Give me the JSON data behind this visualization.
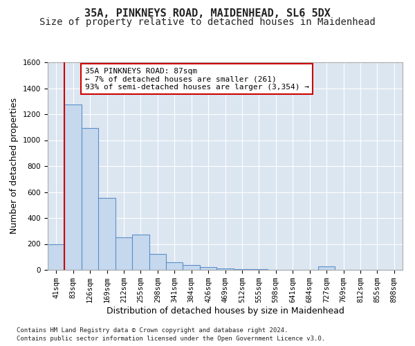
{
  "title_line1": "35A, PINKNEYS ROAD, MAIDENHEAD, SL6 5DX",
  "title_line2": "Size of property relative to detached houses in Maidenhead",
  "xlabel": "Distribution of detached houses by size in Maidenhead",
  "ylabel": "Number of detached properties",
  "bar_color": "#c5d8ed",
  "bar_edge_color": "#5b8fc9",
  "plot_bg_color": "#dce6f1",
  "grid_color": "#ffffff",
  "categories": [
    "41sqm",
    "83sqm",
    "126sqm",
    "169sqm",
    "212sqm",
    "255sqm",
    "298sqm",
    "341sqm",
    "384sqm",
    "426sqm",
    "469sqm",
    "512sqm",
    "555sqm",
    "598sqm",
    "641sqm",
    "684sqm",
    "727sqm",
    "769sqm",
    "812sqm",
    "855sqm",
    "898sqm"
  ],
  "bar_heights": [
    200,
    1275,
    1095,
    555,
    250,
    270,
    125,
    60,
    35,
    20,
    12,
    5,
    5,
    0,
    0,
    0,
    25,
    0,
    0,
    0,
    0
  ],
  "ylim": [
    0,
    1600
  ],
  "yticks": [
    0,
    200,
    400,
    600,
    800,
    1000,
    1200,
    1400,
    1600
  ],
  "annotation_text": "35A PINKNEYS ROAD: 87sqm\n← 7% of detached houses are smaller (261)\n93% of semi-detached houses are larger (3,354) →",
  "annotation_box_facecolor": "#ffffff",
  "annotation_edge_color": "#cc0000",
  "vline_color": "#cc0000",
  "vline_x_index": 1,
  "footnote1": "Contains HM Land Registry data © Crown copyright and database right 2024.",
  "footnote2": "Contains public sector information licensed under the Open Government Licence v3.0.",
  "title_fontsize": 11,
  "subtitle_fontsize": 10,
  "ylabel_fontsize": 9,
  "xlabel_fontsize": 9,
  "tick_fontsize": 7.5,
  "annot_fontsize": 8
}
